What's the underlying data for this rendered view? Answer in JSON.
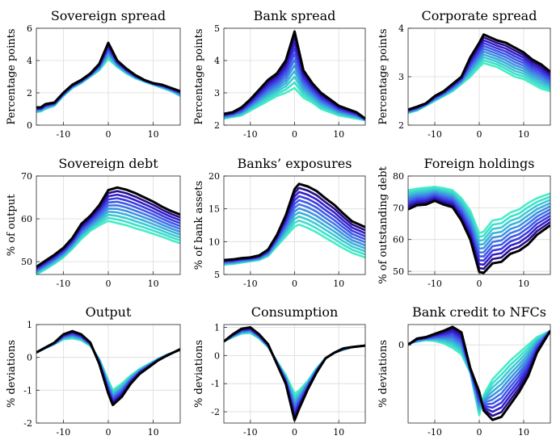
{
  "figure": {
    "series_colors": [
      "#000000",
      "#2a0d8f",
      "#3320c4",
      "#3b3be0",
      "#3f58e8",
      "#4076e6",
      "#3f93e1",
      "#3cb0da",
      "#3ccad2",
      "#40dfcb",
      "#45eec5"
    ]
  },
  "chart_data": [
    {
      "type": "line",
      "title": "Sovereign spread",
      "ylabel": "Percentage points",
      "xlim": [
        -16,
        16
      ],
      "ylim": [
        0,
        6
      ],
      "xticks": [
        -10,
        0,
        10
      ],
      "yticks": [
        0,
        2,
        4,
        6
      ],
      "grid": true,
      "black": [
        [
          -16,
          1.1
        ],
        [
          -15,
          1.1
        ],
        [
          -14,
          1.3
        ],
        [
          -12,
          1.4
        ],
        [
          -10,
          2.0
        ],
        [
          -8,
          2.5
        ],
        [
          -6,
          2.8
        ],
        [
          -4,
          3.2
        ],
        [
          -2,
          3.8
        ],
        [
          0,
          5.1
        ],
        [
          2,
          4.0
        ],
        [
          4,
          3.5
        ],
        [
          6,
          3.1
        ],
        [
          8,
          2.8
        ],
        [
          10,
          2.6
        ],
        [
          12,
          2.5
        ],
        [
          14,
          2.3
        ],
        [
          16,
          2.1
        ]
      ],
      "teal": [
        [
          -16,
          0.8
        ],
        [
          -15,
          0.85
        ],
        [
          -14,
          1.0
        ],
        [
          -12,
          1.2
        ],
        [
          -10,
          1.8
        ],
        [
          -8,
          2.3
        ],
        [
          -6,
          2.6
        ],
        [
          -4,
          3.0
        ],
        [
          -2,
          3.4
        ],
        [
          0,
          4.1
        ],
        [
          2,
          3.6
        ],
        [
          4,
          3.2
        ],
        [
          6,
          2.9
        ],
        [
          8,
          2.7
        ],
        [
          10,
          2.5
        ],
        [
          12,
          2.3
        ],
        [
          14,
          2.1
        ],
        [
          16,
          1.8
        ]
      ]
    },
    {
      "type": "line",
      "title": "Bank spread",
      "ylabel": "Percentage points",
      "xlim": [
        -16,
        16
      ],
      "ylim": [
        2,
        5
      ],
      "xticks": [
        -10,
        0,
        10
      ],
      "yticks": [
        2,
        3,
        4,
        5
      ],
      "grid": true,
      "black": [
        [
          -16,
          2.35
        ],
        [
          -14,
          2.4
        ],
        [
          -12,
          2.55
        ],
        [
          -10,
          2.8
        ],
        [
          -8,
          3.1
        ],
        [
          -6,
          3.4
        ],
        [
          -4,
          3.6
        ],
        [
          -2,
          4.0
        ],
        [
          0,
          4.9
        ],
        [
          2,
          3.7
        ],
        [
          4,
          3.3
        ],
        [
          6,
          3.0
        ],
        [
          8,
          2.8
        ],
        [
          10,
          2.6
        ],
        [
          12,
          2.5
        ],
        [
          14,
          2.4
        ],
        [
          16,
          2.2
        ]
      ],
      "teal": [
        [
          -16,
          2.2
        ],
        [
          -14,
          2.25
        ],
        [
          -12,
          2.3
        ],
        [
          -10,
          2.45
        ],
        [
          -8,
          2.6
        ],
        [
          -6,
          2.75
        ],
        [
          -4,
          2.9
        ],
        [
          -2,
          3.0
        ],
        [
          0,
          3.15
        ],
        [
          2,
          2.85
        ],
        [
          4,
          2.7
        ],
        [
          6,
          2.5
        ],
        [
          8,
          2.4
        ],
        [
          10,
          2.3
        ],
        [
          12,
          2.25
        ],
        [
          14,
          2.2
        ],
        [
          16,
          2.15
        ]
      ]
    },
    {
      "type": "line",
      "title": "Corporate spread",
      "ylabel": "Percentage points",
      "xlim": [
        -16,
        16
      ],
      "ylim": [
        2,
        4
      ],
      "xticks": [
        -10,
        0,
        10
      ],
      "yticks": [
        2,
        3,
        4
      ],
      "grid": true,
      "black": [
        [
          -16,
          2.32
        ],
        [
          -14,
          2.38
        ],
        [
          -12,
          2.45
        ],
        [
          -10,
          2.6
        ],
        [
          -8,
          2.7
        ],
        [
          -6,
          2.85
        ],
        [
          -4,
          3.0
        ],
        [
          -2,
          3.4
        ],
        [
          0,
          3.7
        ],
        [
          1,
          3.87
        ],
        [
          4,
          3.75
        ],
        [
          6,
          3.7
        ],
        [
          8,
          3.6
        ],
        [
          10,
          3.5
        ],
        [
          12,
          3.35
        ],
        [
          14,
          3.25
        ],
        [
          16,
          3.1
        ]
      ],
      "teal": [
        [
          -16,
          2.25
        ],
        [
          -14,
          2.3
        ],
        [
          -12,
          2.4
        ],
        [
          -10,
          2.5
        ],
        [
          -8,
          2.6
        ],
        [
          -6,
          2.7
        ],
        [
          -4,
          2.85
        ],
        [
          -2,
          3.0
        ],
        [
          0,
          3.2
        ],
        [
          1,
          3.28
        ],
        [
          4,
          3.2
        ],
        [
          6,
          3.1
        ],
        [
          8,
          3.0
        ],
        [
          10,
          2.95
        ],
        [
          12,
          2.85
        ],
        [
          14,
          2.75
        ],
        [
          16,
          2.7
        ]
      ]
    },
    {
      "type": "line",
      "title": "Sovereign debt",
      "ylabel": "% of output",
      "xlim": [
        -16,
        16
      ],
      "ylim": [
        47,
        70
      ],
      "xticks": [
        -10,
        0,
        10
      ],
      "yticks": [
        50,
        60,
        70
      ],
      "grid": true,
      "black": [
        [
          -16,
          48.8
        ],
        [
          -14,
          50.2
        ],
        [
          -12,
          51.6
        ],
        [
          -10,
          53.2
        ],
        [
          -8,
          55.5
        ],
        [
          -6,
          58.8
        ],
        [
          -4,
          60.7
        ],
        [
          -2,
          63.2
        ],
        [
          0,
          66.7
        ],
        [
          2,
          67.3
        ],
        [
          4,
          66.8
        ],
        [
          6,
          66.0
        ],
        [
          8,
          65.0
        ],
        [
          10,
          64.0
        ],
        [
          12,
          62.8
        ],
        [
          14,
          61.8
        ],
        [
          16,
          61.0
        ]
      ],
      "teal": [
        [
          -16,
          47.0
        ],
        [
          -14,
          48.2
        ],
        [
          -12,
          49.5
        ],
        [
          -10,
          51.0
        ],
        [
          -8,
          53.0
        ],
        [
          -6,
          55.3
        ],
        [
          -4,
          57.2
        ],
        [
          -2,
          58.5
        ],
        [
          0,
          59.5
        ],
        [
          2,
          59.0
        ],
        [
          4,
          58.5
        ],
        [
          6,
          57.8
        ],
        [
          8,
          57.2
        ],
        [
          10,
          56.5
        ],
        [
          12,
          55.8
        ],
        [
          14,
          55.0
        ],
        [
          16,
          54.3
        ]
      ]
    },
    {
      "type": "line",
      "title": "Banks’ exposures",
      "ylabel": "% of bank assets",
      "xlim": [
        -16,
        16
      ],
      "ylim": [
        5,
        20
      ],
      "xticks": [
        -10,
        0,
        10
      ],
      "yticks": [
        5,
        10,
        15,
        20
      ],
      "grid": true,
      "black": [
        [
          -16,
          7.2
        ],
        [
          -14,
          7.3
        ],
        [
          -12,
          7.5
        ],
        [
          -10,
          7.6
        ],
        [
          -8,
          7.9
        ],
        [
          -6,
          8.8
        ],
        [
          -4,
          11.0
        ],
        [
          -2,
          14.0
        ],
        [
          0,
          18.0
        ],
        [
          1,
          18.8
        ],
        [
          3,
          18.4
        ],
        [
          5,
          17.7
        ],
        [
          7,
          16.6
        ],
        [
          9,
          15.6
        ],
        [
          11,
          14.3
        ],
        [
          13,
          13.1
        ],
        [
          16,
          12.2
        ]
      ],
      "teal": [
        [
          -16,
          6.5
        ],
        [
          -14,
          6.6
        ],
        [
          -12,
          6.8
        ],
        [
          -10,
          7.0
        ],
        [
          -8,
          7.2
        ],
        [
          -6,
          7.8
        ],
        [
          -4,
          9.3
        ],
        [
          -2,
          10.8
        ],
        [
          0,
          12.3
        ],
        [
          1,
          12.6
        ],
        [
          3,
          12.1
        ],
        [
          5,
          11.4
        ],
        [
          7,
          10.6
        ],
        [
          9,
          9.8
        ],
        [
          11,
          9.0
        ],
        [
          13,
          8.3
        ],
        [
          16,
          7.6
        ]
      ]
    },
    {
      "type": "line",
      "title": "Foreign holdings",
      "ylabel": "% of outstanding debt",
      "xlim": [
        -16,
        16
      ],
      "ylim": [
        49,
        80
      ],
      "xticks": [
        -10,
        0,
        10
      ],
      "yticks": [
        50,
        60,
        70,
        80
      ],
      "grid": true,
      "black": [
        [
          -16,
          69.5
        ],
        [
          -14,
          70.8
        ],
        [
          -12,
          71.0
        ],
        [
          -10,
          72.2
        ],
        [
          -8,
          71.0
        ],
        [
          -6,
          70.2
        ],
        [
          -4,
          66.0
        ],
        [
          -2,
          60.0
        ],
        [
          0,
          49.8
        ],
        [
          1,
          49.5
        ],
        [
          3,
          52.5
        ],
        [
          5,
          53.0
        ],
        [
          7,
          55.5
        ],
        [
          9,
          56.5
        ],
        [
          11,
          58.5
        ],
        [
          13,
          61.5
        ],
        [
          16,
          64.5
        ]
      ],
      "teal": [
        [
          -16,
          75.5
        ],
        [
          -14,
          76.0
        ],
        [
          -12,
          76.3
        ],
        [
          -10,
          76.6
        ],
        [
          -8,
          76.2
        ],
        [
          -6,
          75.5
        ],
        [
          -4,
          73.0
        ],
        [
          -2,
          69.0
        ],
        [
          0,
          62.0
        ],
        [
          1,
          62.5
        ],
        [
          3,
          66.0
        ],
        [
          5,
          66.5
        ],
        [
          7,
          68.5
        ],
        [
          9,
          69.5
        ],
        [
          11,
          71.5
        ],
        [
          13,
          73.0
        ],
        [
          16,
          74.5
        ]
      ]
    },
    {
      "type": "line",
      "title": "Output",
      "ylabel": "% deviations",
      "xlim": [
        -16,
        16
      ],
      "ylim": [
        -2,
        1
      ],
      "xticks": [
        -10,
        0,
        10
      ],
      "yticks": [
        -2,
        -1,
        0,
        1
      ],
      "grid": true,
      "black": [
        [
          -16,
          0.15
        ],
        [
          -14,
          0.3
        ],
        [
          -12,
          0.45
        ],
        [
          -10,
          0.7
        ],
        [
          -8,
          0.8
        ],
        [
          -6,
          0.7
        ],
        [
          -4,
          0.45
        ],
        [
          -2,
          -0.2
        ],
        [
          0,
          -1.1
        ],
        [
          1,
          -1.45
        ],
        [
          3,
          -1.2
        ],
        [
          5,
          -0.8
        ],
        [
          7,
          -0.5
        ],
        [
          9,
          -0.3
        ],
        [
          11,
          -0.1
        ],
        [
          13,
          0.05
        ],
        [
          16,
          0.25
        ]
      ],
      "teal": [
        [
          -16,
          0.15
        ],
        [
          -14,
          0.28
        ],
        [
          -12,
          0.4
        ],
        [
          -10,
          0.55
        ],
        [
          -8,
          0.58
        ],
        [
          -6,
          0.52
        ],
        [
          -4,
          0.35
        ],
        [
          -2,
          -0.05
        ],
        [
          0,
          -0.7
        ],
        [
          1,
          -1.0
        ],
        [
          3,
          -0.8
        ],
        [
          5,
          -0.55
        ],
        [
          7,
          -0.35
        ],
        [
          9,
          -0.2
        ],
        [
          11,
          -0.05
        ],
        [
          13,
          0.08
        ],
        [
          16,
          0.22
        ]
      ]
    },
    {
      "type": "line",
      "title": "Consumption",
      "ylabel": "% deviations",
      "xlim": [
        -16,
        16
      ],
      "ylim": [
        -2.4,
        1.1
      ],
      "xticks": [
        -10,
        0,
        10
      ],
      "yticks": [
        -2,
        -1,
        0,
        1
      ],
      "grid": true,
      "black": [
        [
          -16,
          0.5
        ],
        [
          -14,
          0.75
        ],
        [
          -12,
          0.95
        ],
        [
          -10,
          1.0
        ],
        [
          -8,
          0.75
        ],
        [
          -6,
          0.4
        ],
        [
          -4,
          -0.3
        ],
        [
          -2,
          -1.0
        ],
        [
          0,
          -2.3
        ],
        [
          1,
          -1.9
        ],
        [
          3,
          -1.2
        ],
        [
          5,
          -0.6
        ],
        [
          7,
          -0.1
        ],
        [
          9,
          0.1
        ],
        [
          11,
          0.25
        ],
        [
          13,
          0.3
        ],
        [
          16,
          0.35
        ]
      ],
      "teal": [
        [
          -16,
          0.5
        ],
        [
          -14,
          0.65
        ],
        [
          -12,
          0.78
        ],
        [
          -10,
          0.8
        ],
        [
          -8,
          0.6
        ],
        [
          -6,
          0.3
        ],
        [
          -4,
          -0.2
        ],
        [
          -2,
          -0.7
        ],
        [
          0,
          -1.35
        ],
        [
          1,
          -1.25
        ],
        [
          3,
          -0.9
        ],
        [
          5,
          -0.45
        ],
        [
          7,
          -0.1
        ],
        [
          9,
          0.1
        ],
        [
          11,
          0.2
        ],
        [
          13,
          0.3
        ],
        [
          16,
          0.35
        ]
      ]
    },
    {
      "type": "line",
      "title": "Bank credit to NFCs",
      "ylabel": "% deviations",
      "xlim": [
        -16,
        16
      ],
      "ylim": [
        -5,
        1.3
      ],
      "xticks": [
        -10,
        0,
        10
      ],
      "yticks": [
        0
      ],
      "grid": true,
      "black": [
        [
          -16,
          0.0
        ],
        [
          -14,
          0.4
        ],
        [
          -12,
          0.5
        ],
        [
          -10,
          0.7
        ],
        [
          -8,
          0.9
        ],
        [
          -6,
          1.15
        ],
        [
          -4,
          0.8
        ],
        [
          -2,
          -1.5
        ],
        [
          0,
          -3.0
        ],
        [
          1,
          -4.2
        ],
        [
          3,
          -4.8
        ],
        [
          5,
          -4.6
        ],
        [
          7,
          -3.8
        ],
        [
          9,
          -3.0
        ],
        [
          11,
          -2.0
        ],
        [
          13,
          -0.5
        ],
        [
          16,
          0.9
        ]
      ],
      "teal": [
        [
          -16,
          0.1
        ],
        [
          -14,
          0.2
        ],
        [
          -12,
          0.3
        ],
        [
          -10,
          0.25
        ],
        [
          -8,
          0.1
        ],
        [
          -6,
          -0.2
        ],
        [
          -4,
          -0.6
        ],
        [
          -2,
          -1.8
        ],
        [
          0,
          -4.5
        ],
        [
          1,
          -3.2
        ],
        [
          3,
          -2.2
        ],
        [
          5,
          -1.6
        ],
        [
          7,
          -1.0
        ],
        [
          9,
          -0.5
        ],
        [
          11,
          0.0
        ],
        [
          13,
          0.5
        ],
        [
          16,
          0.9
        ]
      ]
    }
  ]
}
